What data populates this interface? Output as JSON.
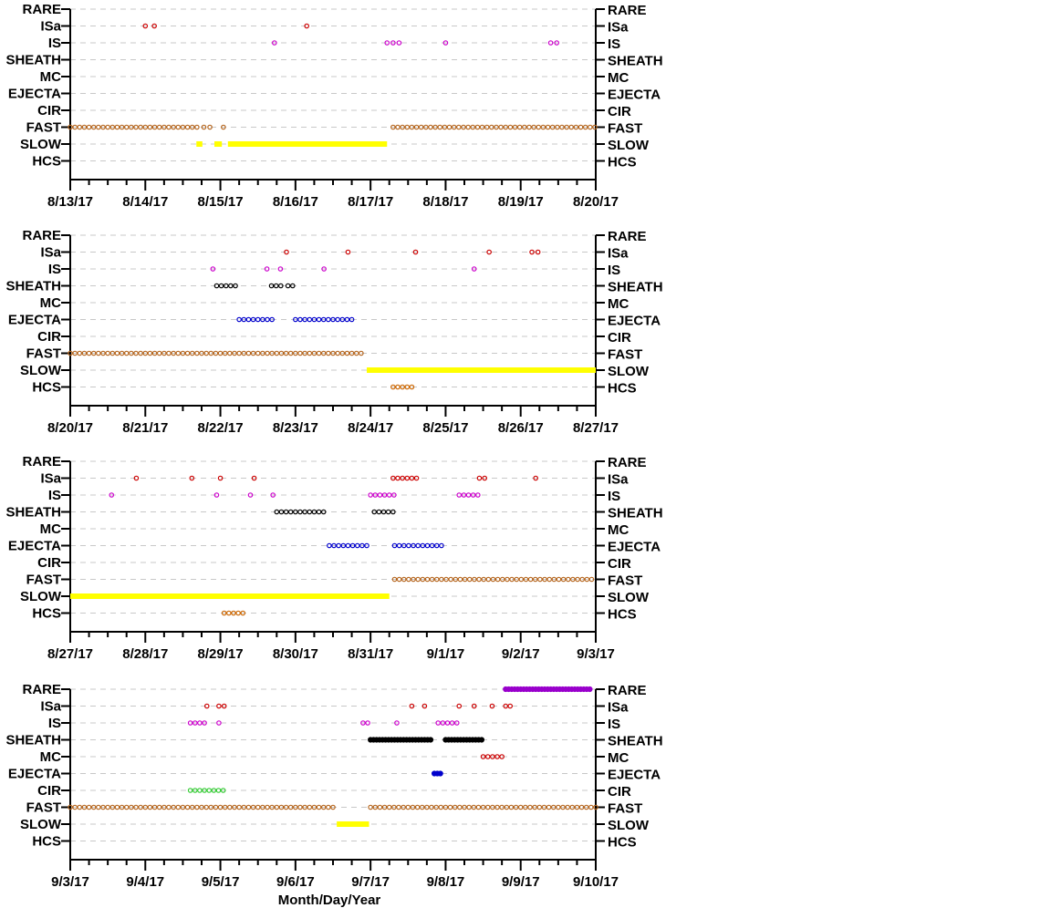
{
  "chart_data": {
    "type": "scatter",
    "xlabel": "Month/Day/Year",
    "categories": [
      "RARE",
      "ISa",
      "IS",
      "SHEATH",
      "MC",
      "EJECTA",
      "CIR",
      "FAST",
      "SLOW",
      "HCS"
    ],
    "grid": "dashed horizontal",
    "colors": {
      "RARE": "#9900cc",
      "ISa": "#cc0000",
      "IS": "#cc00cc",
      "SHEATH": "#000000",
      "MC": "#cc0000",
      "EJECTA": "#0000cc",
      "CIR": "#33cc33",
      "FAST": "#b5651d",
      "SLOW": "#ffff00",
      "HCS": "#cc6600"
    },
    "panels": [
      {
        "xlim": [
          0,
          7
        ],
        "xticks": [
          "8/13/17",
          "8/14/17",
          "8/15/17",
          "8/16/17",
          "8/17/17",
          "8/18/17",
          "8/19/17",
          "8/20/17"
        ],
        "segments": [
          {
            "cat": "ISa",
            "points": [
              1.0,
              1.12,
              3.15
            ]
          },
          {
            "cat": "IS",
            "points": [
              2.72,
              4.22,
              4.3,
              4.38,
              5.0,
              6.4,
              6.48
            ]
          },
          {
            "cat": "FAST",
            "range": [
              0,
              1.7
            ]
          },
          {
            "cat": "FAST",
            "points": [
              1.78,
              1.86,
              2.04
            ]
          },
          {
            "cat": "FAST",
            "range": [
              4.3,
              7.0
            ]
          },
          {
            "cat": "SLOW",
            "range": [
              1.68,
              1.76
            ],
            "solid": true
          },
          {
            "cat": "SLOW",
            "range": [
              1.92,
              2.02
            ],
            "solid": true
          },
          {
            "cat": "SLOW",
            "range": [
              2.1,
              4.22
            ],
            "solid": true
          }
        ]
      },
      {
        "xlim": [
          0,
          7
        ],
        "xticks": [
          "8/20/17",
          "8/21/17",
          "8/22/17",
          "8/23/17",
          "8/24/17",
          "8/25/17",
          "8/26/17",
          "8/27/17"
        ],
        "segments": [
          {
            "cat": "ISa",
            "points": [
              2.88,
              3.7,
              4.6,
              5.58,
              6.15,
              6.23
            ]
          },
          {
            "cat": "IS",
            "points": [
              1.9,
              2.62,
              2.8,
              3.38,
              5.38
            ]
          },
          {
            "cat": "SHEATH",
            "range": [
              1.95,
              2.25
            ]
          },
          {
            "cat": "SHEATH",
            "range": [
              2.68,
              2.82
            ]
          },
          {
            "cat": "SHEATH",
            "range": [
              2.9,
              3.0
            ]
          },
          {
            "cat": "EJECTA",
            "range": [
              2.25,
              2.7
            ]
          },
          {
            "cat": "EJECTA",
            "range": [
              3.0,
              3.75
            ]
          },
          {
            "cat": "FAST",
            "range": [
              0,
              3.9
            ]
          },
          {
            "cat": "SLOW",
            "range": [
              3.95,
              7.0
            ],
            "solid": true
          },
          {
            "cat": "HCS",
            "range": [
              4.3,
              4.6
            ]
          }
        ]
      },
      {
        "xlim": [
          0,
          7
        ],
        "xticks": [
          "8/27/17",
          "8/28/17",
          "8/29/17",
          "8/30/17",
          "8/31/17",
          "9/1/17",
          "9/2/17",
          "9/3/17"
        ],
        "segments": [
          {
            "cat": "ISa",
            "points": [
              0.88,
              1.62,
              2.0,
              2.45,
              5.45,
              5.52,
              6.2
            ]
          },
          {
            "cat": "ISa",
            "range": [
              4.3,
              4.62
            ]
          },
          {
            "cat": "IS",
            "points": [
              0.55,
              1.95,
              2.4,
              2.7
            ]
          },
          {
            "cat": "IS",
            "range": [
              4.0,
              4.32
            ]
          },
          {
            "cat": "IS",
            "range": [
              5.18,
              5.45
            ]
          },
          {
            "cat": "SHEATH",
            "range": [
              2.75,
              3.4
            ]
          },
          {
            "cat": "SHEATH",
            "range": [
              4.05,
              4.32
            ]
          },
          {
            "cat": "EJECTA",
            "range": [
              3.45,
              3.98
            ]
          },
          {
            "cat": "EJECTA",
            "range": [
              4.32,
              4.95
            ]
          },
          {
            "cat": "FAST",
            "range": [
              4.32,
              7.0
            ]
          },
          {
            "cat": "SLOW",
            "range": [
              0,
              4.25
            ],
            "solid": true
          },
          {
            "cat": "HCS",
            "range": [
              2.05,
              2.35
            ]
          }
        ]
      },
      {
        "xlim": [
          0,
          7
        ],
        "xticks": [
          "9/3/17",
          "9/4/17",
          "9/5/17",
          "9/6/17",
          "9/7/17",
          "9/8/17",
          "9/9/17",
          "9/10/17"
        ],
        "segments": [
          {
            "cat": "RARE",
            "range": [
              5.8,
              6.95
            ],
            "dense": true
          },
          {
            "cat": "ISa",
            "points": [
              1.82,
              1.98,
              2.05,
              4.55,
              4.72,
              5.18,
              5.38,
              5.62,
              5.8,
              5.86
            ]
          },
          {
            "cat": "IS",
            "points": [
              1.98,
              4.35
            ]
          },
          {
            "cat": "IS",
            "range": [
              1.6,
              1.8
            ]
          },
          {
            "cat": "IS",
            "range": [
              3.9,
              4.02
            ]
          },
          {
            "cat": "IS",
            "range": [
              4.9,
              5.18
            ]
          },
          {
            "cat": "SHEATH",
            "range": [
              4.0,
              4.8
            ],
            "dense": true
          },
          {
            "cat": "SHEATH",
            "range": [
              5.0,
              5.5
            ],
            "dense": true
          },
          {
            "cat": "MC",
            "range": [
              5.5,
              5.78
            ]
          },
          {
            "cat": "EJECTA",
            "range": [
              4.85,
              4.95
            ],
            "dense": true
          },
          {
            "cat": "CIR",
            "range": [
              1.6,
              2.05
            ]
          },
          {
            "cat": "FAST",
            "range": [
              0,
              3.5
            ]
          },
          {
            "cat": "FAST",
            "range": [
              4.0,
              7.0
            ]
          },
          {
            "cat": "SLOW",
            "range": [
              3.55,
              3.98
            ],
            "solid": true
          }
        ]
      }
    ]
  }
}
